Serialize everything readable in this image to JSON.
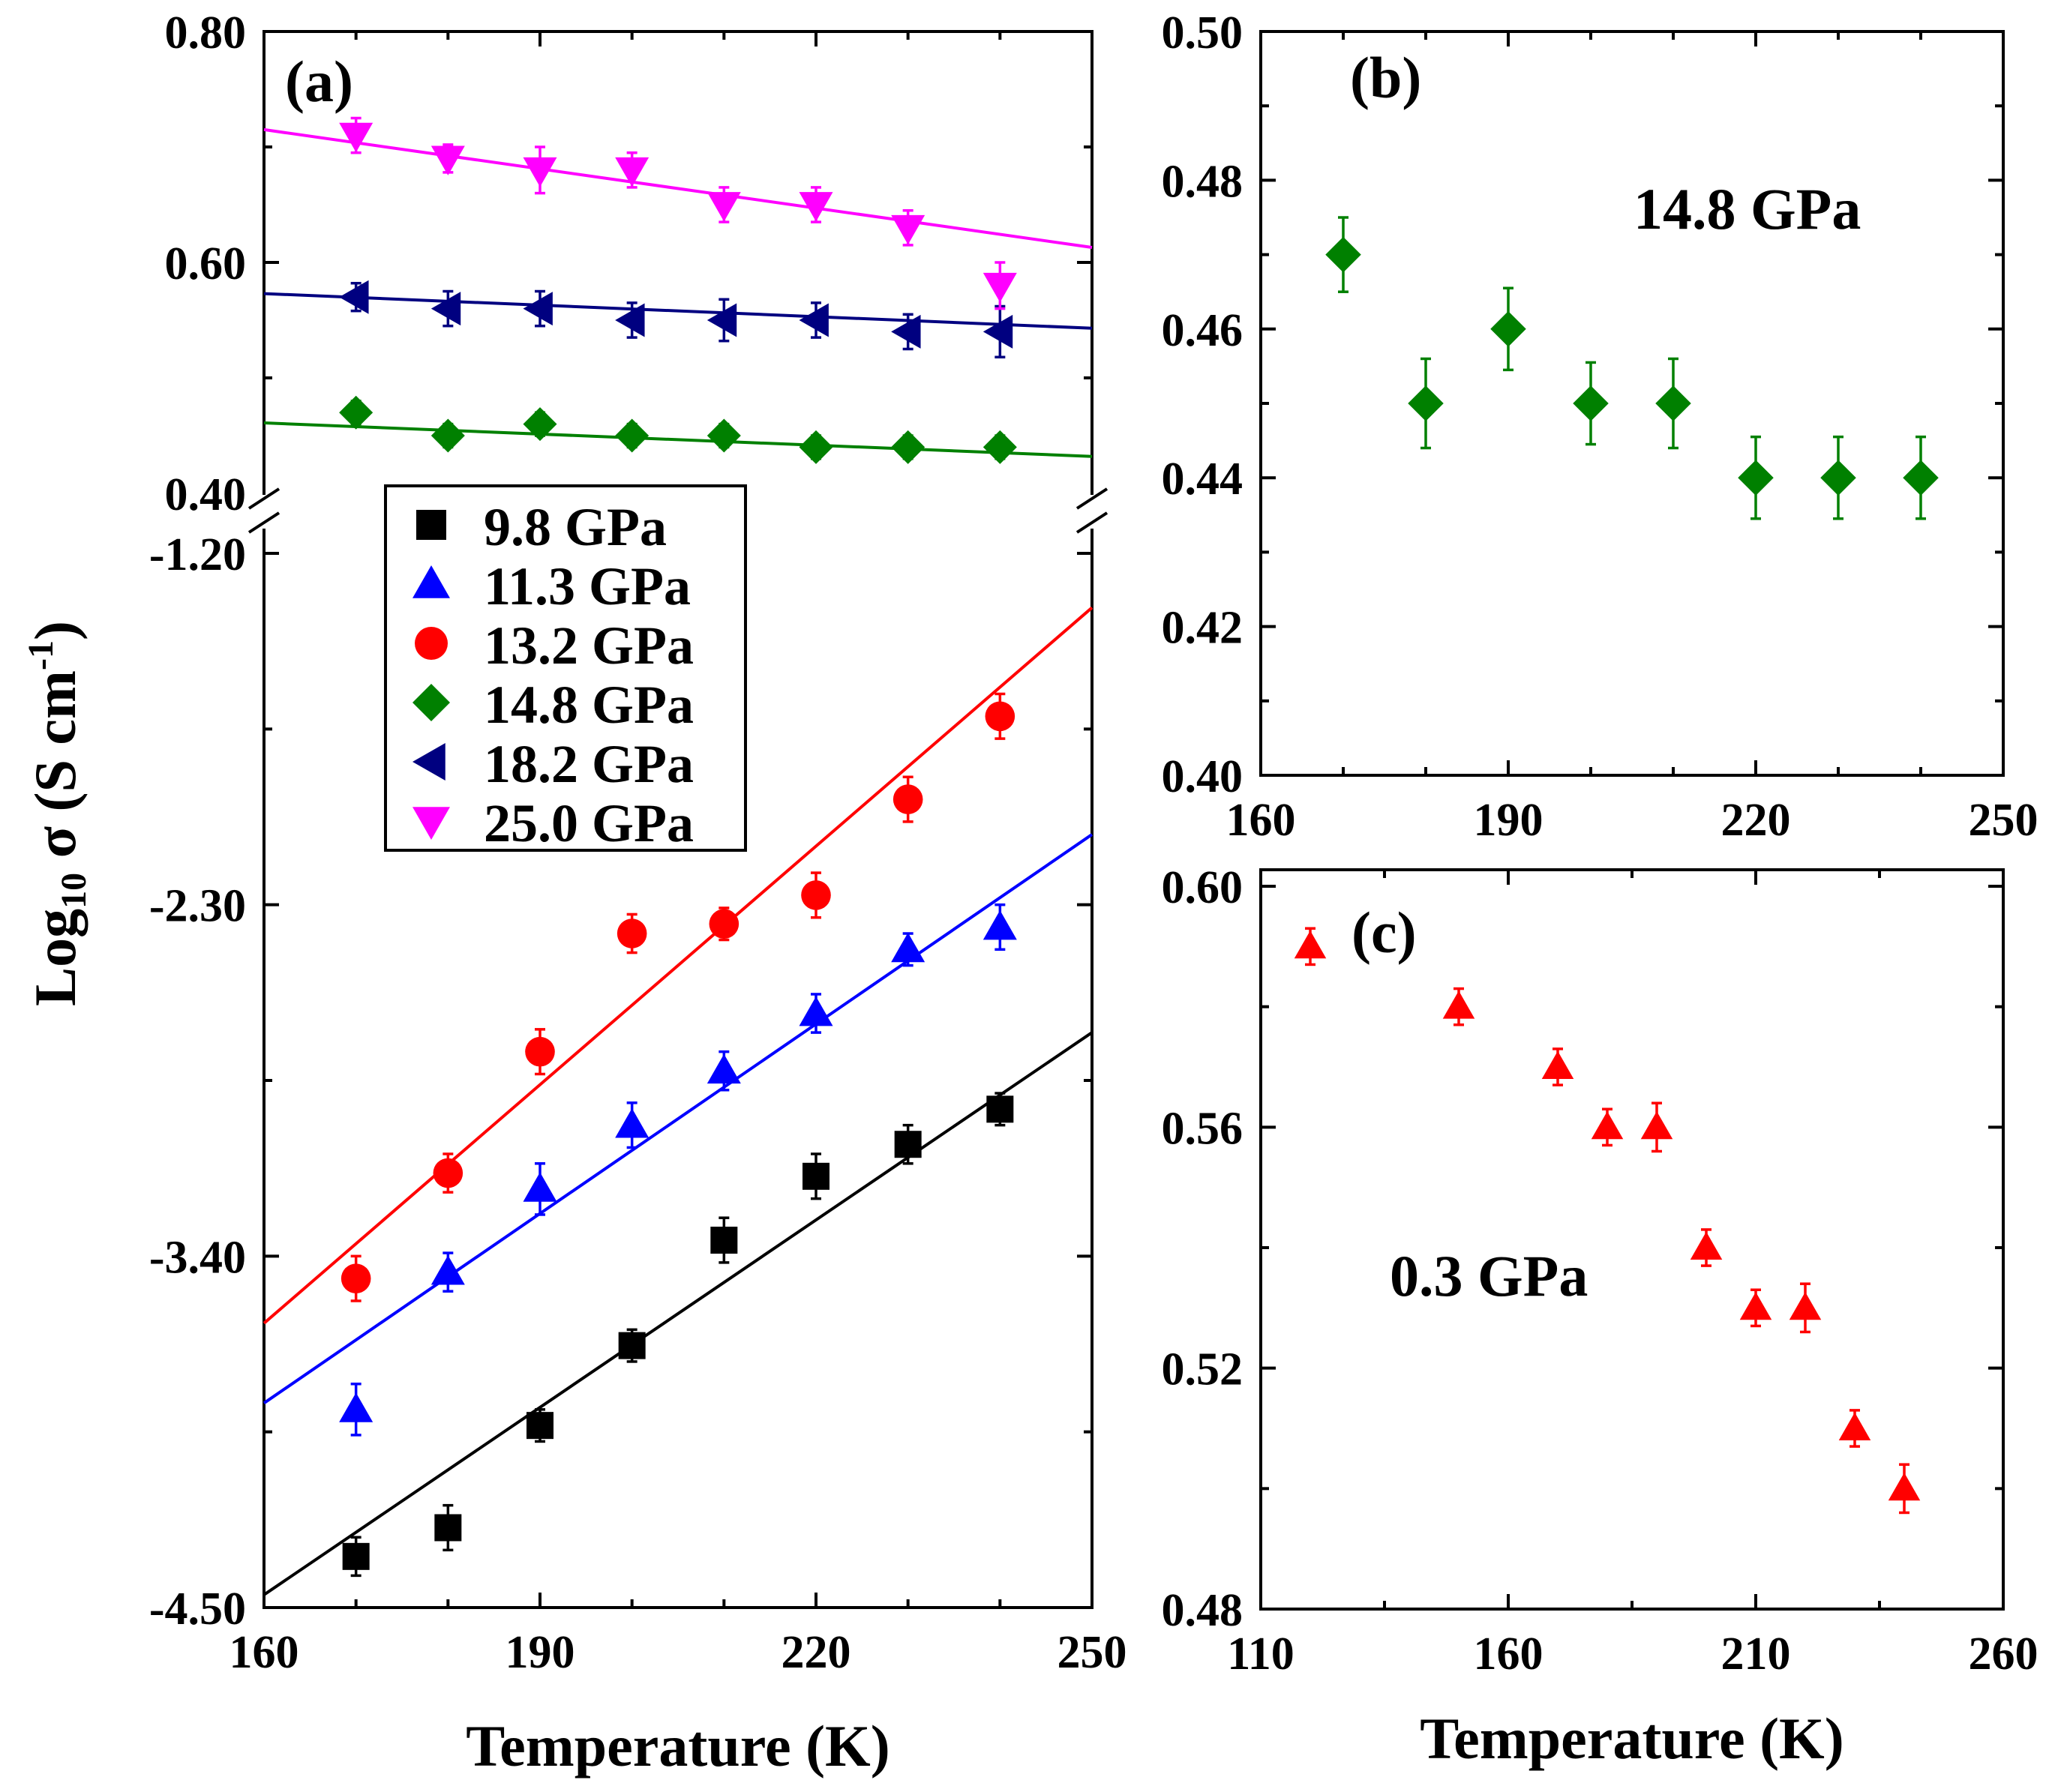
{
  "chart_data": [
    {
      "id": "a",
      "type": "scatter",
      "panel_label": "(a)",
      "xlabel": "Temperature (K)",
      "ylabel_main": "Log",
      "ylabel_sub": "10",
      "ylabel_rest": " σ (S cm",
      "ylabel_sup": "-1",
      "ylabel_close": ")",
      "xlim": [
        160,
        250
      ],
      "xticks": [
        "160",
        "190",
        "220",
        "250"
      ],
      "x_tick_values": [
        160,
        190,
        220,
        250
      ],
      "upper_ylim": [
        0.4,
        0.8
      ],
      "upper_yticks": [
        "0.40",
        "0.60",
        "0.80"
      ],
      "upper_ytick_values": [
        0.4,
        0.6,
        0.8
      ],
      "lower_ylim": [
        -4.5,
        -1.2
      ],
      "lower_yticks": [
        "-4.50",
        "-3.40",
        "-2.30",
        "-1.20"
      ],
      "lower_ytick_values": [
        -4.5,
        -3.4,
        -2.3,
        -1.2
      ],
      "legend_position": "upper-left of lower section",
      "series": [
        {
          "name": "9.8 GPa",
          "marker": "square",
          "color": "#000000",
          "axis": "lower",
          "x": [
            170,
            180,
            190,
            200,
            210,
            220,
            230,
            240
          ],
          "y": [
            -4.34,
            -4.25,
            -3.93,
            -3.68,
            -3.35,
            -3.15,
            -3.05,
            -2.94
          ],
          "err": [
            0.06,
            0.07,
            0.05,
            0.05,
            0.07,
            0.07,
            0.06,
            0.05
          ],
          "fit": {
            "x": [
              160,
              250
            ],
            "y": [
              -4.46,
              -2.7
            ]
          }
        },
        {
          "name": "11.3 GPa",
          "marker": "triangle-up",
          "color": "#0000ff",
          "axis": "lower",
          "x": [
            170,
            180,
            190,
            200,
            210,
            220,
            230,
            240
          ],
          "y": [
            -3.88,
            -3.45,
            -3.19,
            -2.99,
            -2.82,
            -2.64,
            -2.44,
            -2.37
          ],
          "err": [
            0.08,
            0.06,
            0.08,
            0.07,
            0.06,
            0.06,
            0.05,
            0.07
          ],
          "fit": {
            "x": [
              160,
              250
            ],
            "y": [
              -3.86,
              -2.08
            ]
          }
        },
        {
          "name": "13.2 GPa",
          "marker": "circle",
          "color": "#ff0000",
          "axis": "lower",
          "x": [
            170,
            180,
            190,
            200,
            210,
            220,
            230,
            240
          ],
          "y": [
            -3.47,
            -3.14,
            -2.76,
            -2.39,
            -2.36,
            -2.27,
            -1.97,
            -1.71
          ],
          "err": [
            0.07,
            0.06,
            0.07,
            0.06,
            0.05,
            0.07,
            0.07,
            0.07
          ],
          "fit": {
            "x": [
              160,
              250
            ],
            "y": [
              -3.61,
              -1.37
            ]
          }
        },
        {
          "name": "14.8 GPa",
          "marker": "diamond",
          "color": "#008000",
          "axis": "upper",
          "x": [
            170,
            180,
            190,
            200,
            210,
            220,
            230,
            240
          ],
          "y": [
            0.47,
            0.45,
            0.46,
            0.45,
            0.45,
            0.44,
            0.44,
            0.44
          ],
          "err": [
            0.01,
            0.01,
            0.01,
            0.01,
            0.01,
            0.01,
            0.01,
            0.01
          ],
          "fit": {
            "x": [
              160,
              250
            ],
            "y": [
              0.461,
              0.432
            ]
          }
        },
        {
          "name": "18.2 GPa",
          "marker": "triangle-left",
          "color": "#000080",
          "axis": "upper",
          "x": [
            170,
            180,
            190,
            200,
            210,
            220,
            230,
            240
          ],
          "y": [
            0.57,
            0.56,
            0.56,
            0.55,
            0.55,
            0.55,
            0.54,
            0.54
          ],
          "err": [
            0.012,
            0.015,
            0.015,
            0.015,
            0.018,
            0.015,
            0.015,
            0.022
          ],
          "fit": {
            "x": [
              160,
              250
            ],
            "y": [
              0.573,
              0.543
            ]
          }
        },
        {
          "name": "25.0 GPa",
          "marker": "triangle-down",
          "color": "#ff00ff",
          "axis": "upper",
          "x": [
            170,
            180,
            190,
            200,
            210,
            220,
            230,
            240
          ],
          "y": [
            0.71,
            0.69,
            0.68,
            0.68,
            0.65,
            0.65,
            0.63,
            0.58
          ],
          "err": [
            0.015,
            0.012,
            0.02,
            0.015,
            0.015,
            0.015,
            0.015,
            0.02
          ],
          "fit": {
            "x": [
              160,
              250
            ],
            "y": [
              0.715,
              0.613
            ]
          }
        }
      ]
    },
    {
      "id": "b",
      "type": "scatter",
      "panel_label": "(b)",
      "annotation": "14.8 GPa",
      "xlim": [
        160,
        250
      ],
      "ylim": [
        0.4,
        0.5
      ],
      "xticks": [
        "160",
        "190",
        "220",
        "250"
      ],
      "x_tick_values": [
        160,
        190,
        220,
        250
      ],
      "yticks": [
        "0.40",
        "0.42",
        "0.44",
        "0.46",
        "0.48",
        "0.50"
      ],
      "y_tick_values": [
        0.4,
        0.42,
        0.44,
        0.46,
        0.48,
        0.5
      ],
      "series": [
        {
          "name": "14.8 GPa",
          "marker": "diamond",
          "color": "#008000",
          "x": [
            170,
            180,
            190,
            200,
            210,
            220,
            230,
            240
          ],
          "y": [
            0.47,
            0.45,
            0.46,
            0.45,
            0.45,
            0.44,
            0.44,
            0.44
          ],
          "err": [
            0.005,
            0.006,
            0.0055,
            0.0055,
            0.006,
            0.0055,
            0.0055,
            0.0055
          ]
        }
      ]
    },
    {
      "id": "c",
      "type": "scatter",
      "panel_label": "(c)",
      "annotation": "0.3 GPa",
      "xlabel": "Temperature (K)",
      "xlim": [
        110,
        260
      ],
      "ylim": [
        0.48,
        0.6
      ],
      "xticks": [
        "110",
        "160",
        "210",
        "260"
      ],
      "x_tick_values": [
        110,
        160,
        210,
        260
      ],
      "yticks": [
        "0.48",
        "0.52",
        "0.56",
        "0.60"
      ],
      "y_tick_values": [
        0.48,
        0.52,
        0.56,
        0.6
      ],
      "series": [
        {
          "name": "0.3 GPa",
          "marker": "triangle-up",
          "color": "#ff0000",
          "x": [
            120,
            150,
            170,
            180,
            190,
            200,
            210,
            220,
            230,
            240
          ],
          "y": [
            0.59,
            0.58,
            0.57,
            0.56,
            0.56,
            0.54,
            0.53,
            0.53,
            0.51,
            0.5
          ],
          "err": [
            0.003,
            0.003,
            0.003,
            0.003,
            0.004,
            0.003,
            0.003,
            0.004,
            0.003,
            0.004
          ]
        }
      ]
    }
  ]
}
